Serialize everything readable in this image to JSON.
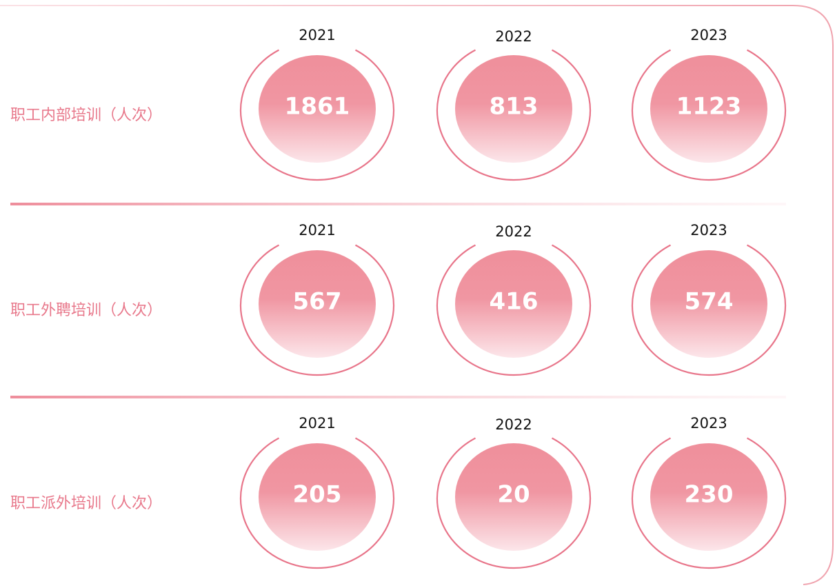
{
  "rows": [
    {
      "label": "职工内部培训（人次）",
      "items": [
        {
          "year": "2021",
          "value": "1861"
        },
        {
          "year": "2022",
          "value": "813"
        },
        {
          "year": "2023",
          "value": "1123"
        }
      ]
    },
    {
      "label": "职工外聘培训（人次）",
      "items": [
        {
          "year": "2021",
          "value": "567"
        },
        {
          "year": "2022",
          "value": "416"
        },
        {
          "year": "2023",
          "value": "574"
        }
      ]
    },
    {
      "label": "职工派外培训（人次）",
      "items": [
        {
          "year": "2021",
          "value": "205"
        },
        {
          "year": "2022",
          "value": "20"
        },
        {
          "year": "2023",
          "value": "230"
        }
      ]
    }
  ]
}
